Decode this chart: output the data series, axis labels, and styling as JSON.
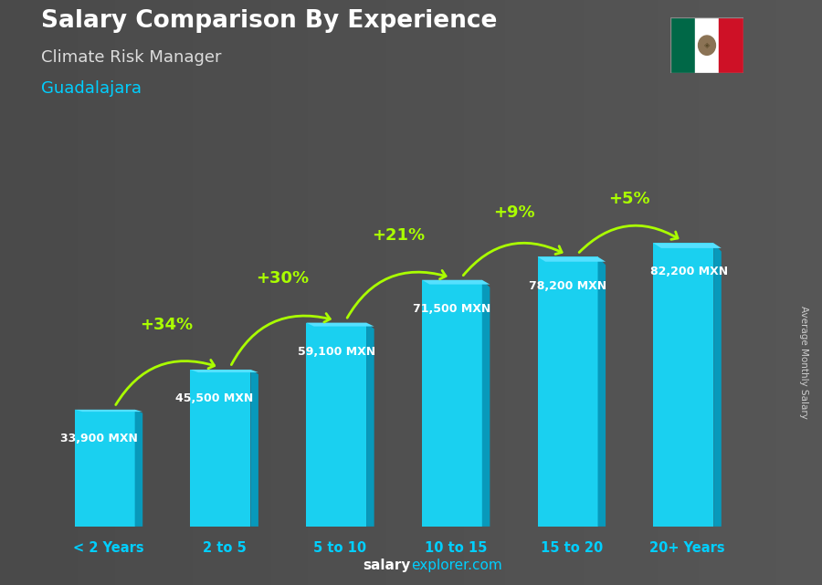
{
  "title": "Salary Comparison By Experience",
  "subtitle": "Climate Risk Manager",
  "city": "Guadalajara",
  "ylabel": "Average Monthly Salary",
  "categories": [
    "< 2 Years",
    "2 to 5",
    "5 to 10",
    "10 to 15",
    "15 to 20",
    "20+ Years"
  ],
  "values": [
    33900,
    45500,
    59100,
    71500,
    78200,
    82200
  ],
  "value_labels": [
    "33,900 MXN",
    "45,500 MXN",
    "59,100 MXN",
    "71,500 MXN",
    "78,200 MXN",
    "82,200 MXN"
  ],
  "pct_labels": [
    "+34%",
    "+30%",
    "+21%",
    "+9%",
    "+5%"
  ],
  "bar_color_front": "#1ad0f0",
  "bar_color_side": "#0899bb",
  "bar_color_top": "#55e0ff",
  "bg_color": "#707070",
  "title_color": "#ffffff",
  "subtitle_color": "#dddddd",
  "city_color": "#00cfff",
  "value_label_color": "#ffffff",
  "pct_color": "#aaff00",
  "arrow_color": "#aaff00",
  "xtick_color": "#00cfff",
  "ylabel_color": "#cccccc",
  "footer_color1": "#ffffff",
  "footer_color2": "#00cfff",
  "ylim_max": 95000,
  "bar_width": 0.52,
  "side_ratio": 0.13
}
